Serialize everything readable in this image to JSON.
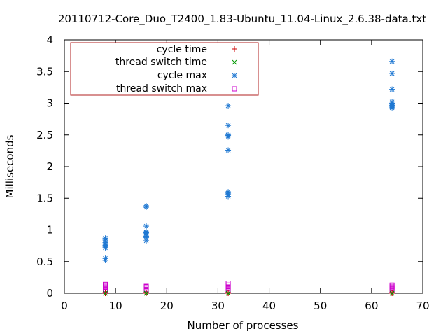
{
  "chart_data": {
    "type": "scatter",
    "title": "20110712-Core_Duo_T2400_1.83-Ubuntu_11.04-Linux_2.6.38-data.txt",
    "xlabel": "Number of processes",
    "ylabel": "Milliseconds",
    "xlim": [
      0,
      70
    ],
    "ylim": [
      0,
      4
    ],
    "xticks": [
      "0",
      "10",
      "20",
      "30",
      "40",
      "50",
      "60",
      "70"
    ],
    "yticks": [
      "0",
      "0.5",
      "1",
      "1.5",
      "2",
      "2.5",
      "3",
      "3.5",
      "4"
    ],
    "grid": false,
    "legend_position": "top-left",
    "series": [
      {
        "name": "cycle time",
        "marker": "plus",
        "color": "#cc0000",
        "x": [
          8,
          8,
          8,
          16,
          16,
          16,
          32,
          32,
          32,
          64,
          64,
          64
        ],
        "y": [
          0.0,
          0.0,
          0.01,
          0.0,
          0.0,
          0.01,
          0.0,
          0.0,
          0.01,
          0.0,
          0.0,
          0.01
        ]
      },
      {
        "name": "thread switch time",
        "marker": "cross",
        "color": "#009900",
        "x": [
          8,
          8,
          8,
          16,
          16,
          16,
          32,
          32,
          32,
          64,
          64,
          64
        ],
        "y": [
          0.0,
          0.0,
          0.0,
          0.0,
          0.0,
          0.0,
          0.0,
          0.0,
          0.0,
          0.0,
          0.0,
          0.0
        ]
      },
      {
        "name": "cycle max",
        "marker": "star",
        "color": "#1f78d2",
        "x": [
          8,
          8,
          8,
          8,
          8,
          8,
          8,
          8,
          8,
          8,
          16,
          16,
          16,
          16,
          16,
          16,
          16,
          16,
          16,
          16,
          32,
          32,
          32,
          32,
          32,
          32,
          32,
          32,
          32,
          32,
          64,
          64,
          64,
          64,
          64,
          64,
          64,
          64,
          64,
          64
        ],
        "y": [
          0.52,
          0.55,
          0.72,
          0.75,
          0.78,
          0.8,
          0.84,
          0.87,
          0.76,
          0.74,
          0.83,
          0.88,
          0.92,
          0.95,
          0.97,
          1.06,
          1.36,
          1.38,
          0.9,
          0.96,
          1.53,
          1.56,
          1.6,
          2.26,
          2.47,
          2.5,
          2.65,
          2.96,
          1.58,
          2.49,
          2.93,
          2.96,
          2.99,
          3.02,
          3.22,
          3.47,
          3.66,
          2.97,
          3.0,
          2.95
        ]
      },
      {
        "name": "thread switch max",
        "marker": "square",
        "color": "#cc00cc",
        "x": [
          8,
          8,
          8,
          8,
          8,
          16,
          16,
          16,
          16,
          16,
          32,
          32,
          32,
          32,
          32,
          64,
          64,
          64,
          64,
          64
        ],
        "y": [
          0.03,
          0.06,
          0.09,
          0.11,
          0.14,
          0.04,
          0.06,
          0.08,
          0.1,
          0.11,
          0.04,
          0.07,
          0.1,
          0.13,
          0.16,
          0.04,
          0.07,
          0.09,
          0.11,
          0.13
        ]
      }
    ]
  }
}
